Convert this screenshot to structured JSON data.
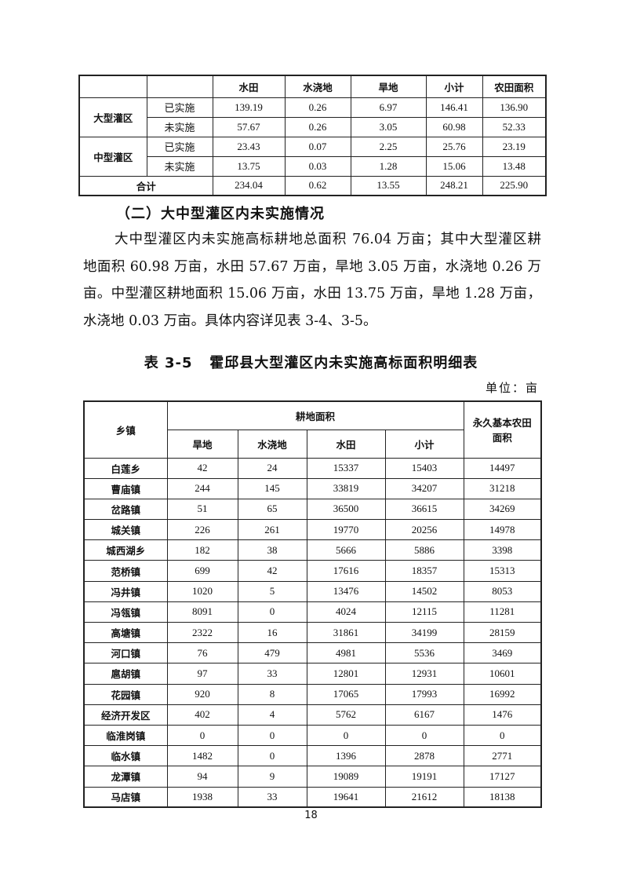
{
  "summary_table": {
    "headers": [
      "",
      "",
      "水田",
      "水浇地",
      "旱地",
      "小计",
      "农田面积"
    ],
    "groups": [
      {
        "name": "大型灌区",
        "rows": [
          {
            "status": "已实施",
            "values": [
              "139.19",
              "0.26",
              "6.97",
              "146.41",
              "136.90"
            ]
          },
          {
            "status": "未实施",
            "values": [
              "57.67",
              "0.26",
              "3.05",
              "60.98",
              "52.33"
            ]
          }
        ]
      },
      {
        "name": "中型灌区",
        "rows": [
          {
            "status": "已实施",
            "values": [
              "23.43",
              "0.07",
              "2.25",
              "25.76",
              "23.19"
            ]
          },
          {
            "status": "未实施",
            "values": [
              "13.75",
              "0.03",
              "1.28",
              "15.06",
              "13.48"
            ]
          }
        ]
      }
    ],
    "total": {
      "label": "合计",
      "values": [
        "234.04",
        "0.62",
        "13.55",
        "248.21",
        "225.90"
      ]
    }
  },
  "section_heading": "（二）大中型灌区内未实施情况",
  "paragraph_lines": [
    "大中型灌区内未实施高标耕地总面积 76.04 万亩；其中大型灌区耕",
    "地面积 60.98 万亩，水田 57.67 万亩，旱地 3.05 万亩，水浇地 0.26 万",
    "亩。中型灌区耕地面积 15.06 万亩，水田 13.75 万亩，旱地 1.28 万亩，",
    "水浇地 0.03 万亩。具体内容详见表 3-4、3-5。"
  ],
  "table_title": "表 3-5   霍邱县大型灌区内未实施高标面积明细表",
  "unit": "单位：亩",
  "detail_table": {
    "header_town": "乡镇",
    "header_group": "耕地面积",
    "sub_headers": [
      "旱地",
      "水浇地",
      "水田",
      "小计"
    ],
    "header_farmland": "永久基本农田面积",
    "rows": [
      [
        "白莲乡",
        "42",
        "24",
        "15337",
        "15403",
        "14497"
      ],
      [
        "曹庙镇",
        "244",
        "145",
        "33819",
        "34207",
        "31218"
      ],
      [
        "岔路镇",
        "51",
        "65",
        "36500",
        "36615",
        "34269"
      ],
      [
        "城关镇",
        "226",
        "261",
        "19770",
        "20256",
        "14978"
      ],
      [
        "城西湖乡",
        "182",
        "38",
        "5666",
        "5886",
        "3398"
      ],
      [
        "范桥镇",
        "699",
        "42",
        "17616",
        "18357",
        "15313"
      ],
      [
        "冯井镇",
        "1020",
        "5",
        "13476",
        "14502",
        "8053"
      ],
      [
        "冯瓴镇",
        "8091",
        "0",
        "4024",
        "12115",
        "11281"
      ],
      [
        "高塘镇",
        "2322",
        "16",
        "31861",
        "34199",
        "28159"
      ],
      [
        "河口镇",
        "76",
        "479",
        "4981",
        "5536",
        "3469"
      ],
      [
        "扈胡镇",
        "97",
        "33",
        "12801",
        "12931",
        "10601"
      ],
      [
        "花园镇",
        "920",
        "8",
        "17065",
        "17993",
        "16992"
      ],
      [
        "经济开发区",
        "402",
        "4",
        "5762",
        "6167",
        "1476"
      ],
      [
        "临淮岗镇",
        "0",
        "0",
        "0",
        "0",
        "0"
      ],
      [
        "临水镇",
        "1482",
        "0",
        "1396",
        "2878",
        "2771"
      ],
      [
        "龙潭镇",
        "94",
        "9",
        "19089",
        "19191",
        "17127"
      ],
      [
        "马店镇",
        "1938",
        "33",
        "19641",
        "21612",
        "18138"
      ]
    ]
  },
  "page_number": "18"
}
